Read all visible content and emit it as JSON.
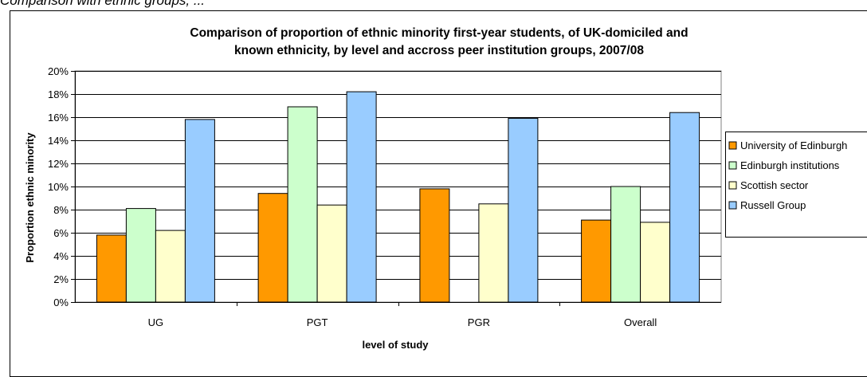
{
  "page_caption": "Comparison with ethnic groups, ...",
  "chart_data": {
    "type": "bar",
    "title_lines": [
      "Comparison of proportion of ethnic minority first-year students, of UK-domiciled and",
      "known ethnicity, by level and accross peer institution groups, 2007/08"
    ],
    "xlabel": "level of study",
    "ylabel": "Proportion ethnic minority",
    "categories": [
      "UG",
      "PGT",
      "PGR",
      "Overall"
    ],
    "ylim": [
      0,
      20
    ],
    "yticks": [
      "0%",
      "2%",
      "4%",
      "6%",
      "8%",
      "10%",
      "12%",
      "14%",
      "16%",
      "18%",
      "20%"
    ],
    "grid": true,
    "legend_position": "right",
    "series": [
      {
        "name": "University of Edinburgh",
        "color": "#FF9900",
        "values": [
          5.8,
          9.4,
          9.8,
          7.1
        ]
      },
      {
        "name": "Edinburgh institutions",
        "color": "#CCFFCC",
        "values": [
          8.1,
          16.9,
          null,
          10.0
        ]
      },
      {
        "name": "Scottish sector",
        "color": "#FFFFCC",
        "values": [
          6.2,
          8.4,
          8.5,
          6.9
        ]
      },
      {
        "name": "Russell Group",
        "color": "#99CCFF",
        "values": [
          15.8,
          18.2,
          15.9,
          16.4
        ]
      }
    ]
  }
}
